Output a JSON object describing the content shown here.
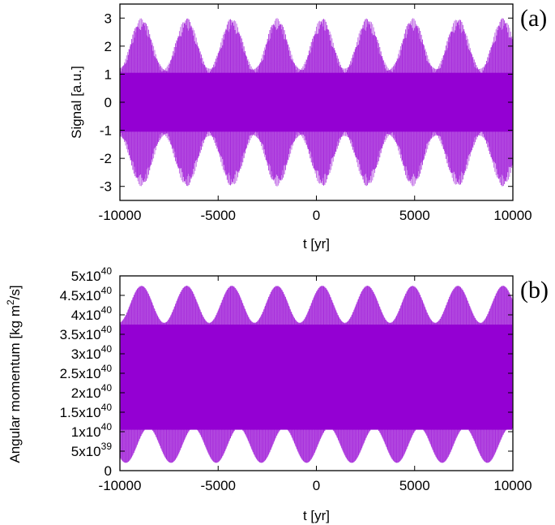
{
  "chart_data": [
    {
      "type": "line",
      "panel_label": "(a)",
      "xlabel": "t [yr]",
      "ylabel": "Signal [a.u.]",
      "xlim": [
        -10000,
        10000
      ],
      "ylim": [
        -3.5,
        3.5
      ],
      "x_ticks": [
        -10000,
        -5000,
        0,
        5000,
        10000
      ],
      "x_tick_labels": [
        "-10000",
        "-5000",
        "0",
        "5000",
        "10000"
      ],
      "y_ticks": [
        -3,
        -2,
        -1,
        0,
        1,
        2,
        3
      ],
      "y_tick_labels": [
        "-3",
        "-2",
        "-1",
        "0",
        "1",
        "2",
        "3"
      ],
      "grid": false,
      "series": [
        {
          "color": "#9400d3",
          "fast_period_yr": 200,
          "envelope_period_yr": 2300,
          "peak_range": [
            1.2,
            3.0
          ],
          "sample_envelope": {
            "t": [
              -8900,
              -6600,
              -4300,
              -2000,
              300,
              2600,
              4900,
              7200,
              9500
            ],
            "max": [
              3.0,
              3.0,
              3.0,
              3.0,
              3.0,
              3.0,
              3.0,
              3.0,
              3.0
            ]
          }
        }
      ]
    },
    {
      "type": "line",
      "panel_label": "(b)",
      "xlabel": "t [yr]",
      "ylabel": "Angular momentum [kg m²/s]",
      "xlim": [
        -10000,
        10000
      ],
      "ylim": [
        0,
        5e+40
      ],
      "x_ticks": [
        -10000,
        -5000,
        0,
        5000,
        10000
      ],
      "x_tick_labels": [
        "-10000",
        "-5000",
        "0",
        "5000",
        "10000"
      ],
      "y_ticks": [
        0,
        5e+39,
        1e+40,
        1.5e+40,
        2e+40,
        2.5e+40,
        3e+40,
        3.5e+40,
        4e+40,
        4.5e+40,
        5e+40
      ],
      "y_tick_labels": [
        {
          "mant": "0",
          "exp": ""
        },
        {
          "mant": "5x10",
          "exp": "39"
        },
        {
          "mant": "1x10",
          "exp": "40"
        },
        {
          "mant": "1.5x10",
          "exp": "40"
        },
        {
          "mant": "2x10",
          "exp": "40"
        },
        {
          "mant": "2.5x10",
          "exp": "40"
        },
        {
          "mant": "3x10",
          "exp": "40"
        },
        {
          "mant": "3.5x10",
          "exp": "40"
        },
        {
          "mant": "4x10",
          "exp": "40"
        },
        {
          "mant": "4.5x10",
          "exp": "40"
        },
        {
          "mant": "5x10",
          "exp": "40"
        }
      ],
      "grid": false,
      "series": [
        {
          "color": "#9400d3",
          "center": 2.4e+40,
          "fast_period_yr": 200,
          "envelope_period_yr": 2300,
          "max_range": [
            3.8e+40,
            4.75e+40
          ],
          "min_range": [
            2e+39,
            1.1e+40
          ]
        }
      ]
    }
  ]
}
